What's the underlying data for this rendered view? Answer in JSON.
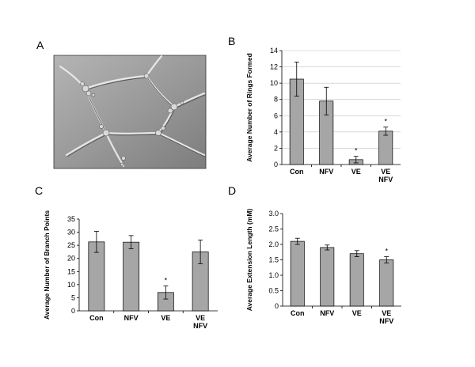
{
  "figure": {
    "panels": [
      {
        "label": "A",
        "kind": "micrograph",
        "description_icon": "microscopy-image-icon"
      },
      {
        "label": "B"
      },
      {
        "label": "C"
      },
      {
        "label": "D"
      }
    ]
  },
  "colors": {
    "bar_fill": "#a6a6a6",
    "bar_stroke": "#000000",
    "axis": "#000000",
    "grid": "#c0c0c0",
    "micrograph_bg": "#9a9a9a"
  },
  "chart_data": [
    {
      "panel": "B",
      "type": "bar",
      "categories": [
        [
          "Con"
        ],
        [
          "NFV"
        ],
        [
          "VE"
        ],
        [
          "VE",
          "NFV"
        ]
      ],
      "values": [
        10.5,
        7.8,
        0.6,
        4.1
      ],
      "errors": [
        2.1,
        1.7,
        0.4,
        0.5
      ],
      "significant": [
        false,
        false,
        true,
        true
      ],
      "marker": "*",
      "ylabel": "Average Number of  Rings Formed",
      "xlabel": "",
      "title": "",
      "ylim": [
        0,
        14
      ],
      "yticks": [
        0,
        2,
        4,
        6,
        8,
        10,
        12,
        14
      ],
      "ytick_labels": [
        "0",
        "2",
        "4",
        "6",
        "8",
        "10",
        "12",
        "14"
      ],
      "grid": true
    },
    {
      "panel": "C",
      "type": "bar",
      "categories": [
        [
          "Con"
        ],
        [
          "NFV"
        ],
        [
          "VE"
        ],
        [
          "VE",
          "NFV"
        ]
      ],
      "values": [
        26.3,
        26.2,
        7.0,
        22.5
      ],
      "errors": [
        4.0,
        2.5,
        2.5,
        4.5
      ],
      "significant": [
        false,
        false,
        true,
        false
      ],
      "marker": "*",
      "ylabel": "Average Number of Branch Points",
      "xlabel": "",
      "title": "",
      "ylim": [
        0,
        35
      ],
      "yticks": [
        0,
        5,
        10,
        15,
        20,
        25,
        30,
        35
      ],
      "ytick_labels": [
        "0",
        "5",
        "10",
        "15",
        "20",
        "25",
        "30",
        "35"
      ],
      "grid": false
    },
    {
      "panel": "D",
      "type": "bar",
      "categories": [
        [
          "Con"
        ],
        [
          "NFV"
        ],
        [
          "VE"
        ],
        [
          "VE",
          "NFV"
        ]
      ],
      "values": [
        2.1,
        1.9,
        1.7,
        1.5
      ],
      "errors": [
        0.1,
        0.08,
        0.1,
        0.1
      ],
      "significant": [
        false,
        false,
        false,
        true
      ],
      "marker": "*",
      "ylabel": "Average Extension Length (mM)",
      "xlabel": "",
      "title": "",
      "ylim": [
        0,
        3.0
      ],
      "yticks": [
        0,
        0.5,
        1.0,
        1.5,
        2.0,
        2.5,
        3.0
      ],
      "ytick_labels": [
        "0",
        "0.5",
        "1.0",
        "1.5",
        "2.0",
        "2.5",
        "3.0"
      ],
      "grid": false
    }
  ]
}
